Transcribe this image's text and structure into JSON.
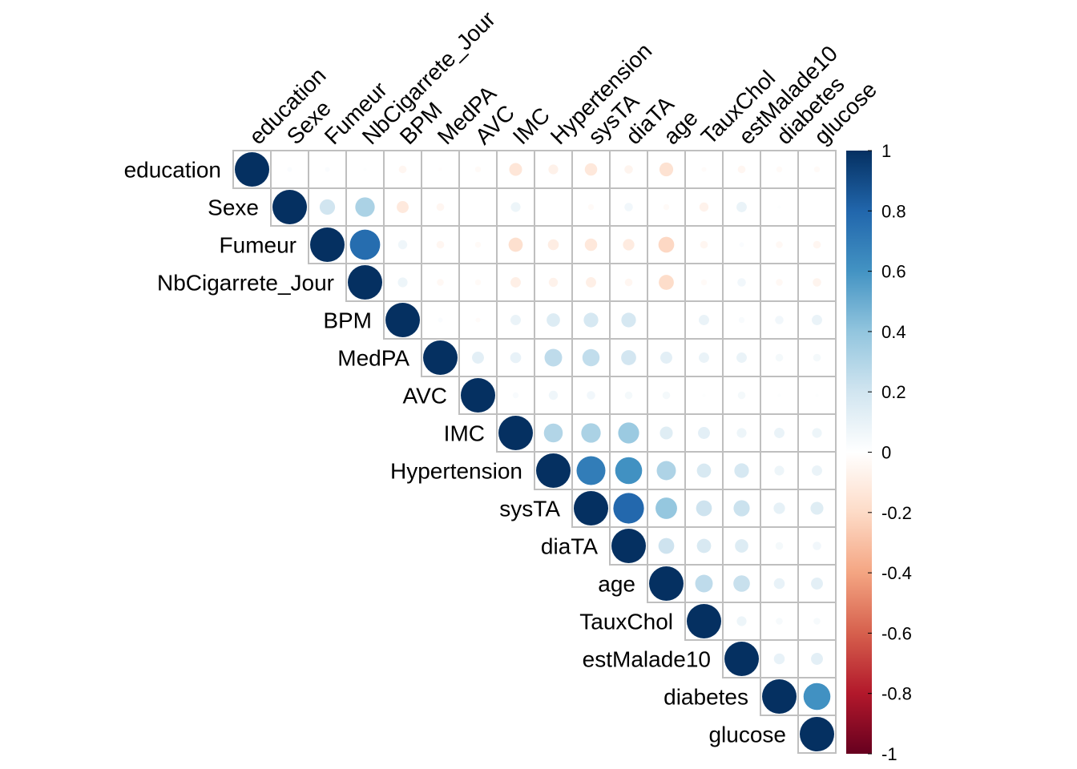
{
  "chart_data": {
    "type": "heatmap",
    "variant": "correlation-upper-circles",
    "title": "",
    "variables": [
      "education",
      "Sexe",
      "Fumeur",
      "NbCigarrete_Jour",
      "BPM",
      "MedPA",
      "AVC",
      "IMC",
      "Hypertension",
      "sysTA",
      "diaTA",
      "age",
      "TauxChol",
      "estMalade10",
      "diabetes",
      "glucose"
    ],
    "matrix": [
      [
        1,
        0.02,
        0.02,
        0.01,
        -0.05,
        -0.01,
        -0.03,
        -0.14,
        -0.08,
        -0.13,
        -0.06,
        -0.16,
        -0.02,
        -0.05,
        -0.03,
        -0.03
      ],
      [
        null,
        1,
        0.2,
        0.32,
        -0.12,
        -0.05,
        0.0,
        0.08,
        0.0,
        -0.03,
        0.06,
        -0.03,
        -0.07,
        0.09,
        0.01,
        0.0
      ],
      [
        null,
        null,
        1,
        0.77,
        0.07,
        -0.05,
        -0.03,
        -0.17,
        -0.1,
        -0.13,
        -0.11,
        -0.21,
        -0.05,
        0.02,
        -0.04,
        -0.05
      ],
      [
        null,
        null,
        null,
        1,
        0.08,
        -0.04,
        -0.03,
        -0.09,
        -0.07,
        -0.09,
        -0.05,
        -0.19,
        -0.03,
        0.06,
        -0.04,
        -0.06
      ],
      [
        null,
        null,
        null,
        null,
        1,
        0.02,
        -0.02,
        0.09,
        0.15,
        0.18,
        0.18,
        0.0,
        0.09,
        0.03,
        0.06,
        0.09
      ],
      [
        null,
        null,
        null,
        null,
        null,
        1,
        0.12,
        0.1,
        0.26,
        0.25,
        0.19,
        0.12,
        0.09,
        0.09,
        0.05,
        0.05
      ],
      [
        null,
        null,
        null,
        null,
        null,
        null,
        1,
        0.03,
        0.07,
        0.06,
        0.05,
        0.05,
        0.01,
        0.05,
        0.01,
        0.01
      ],
      [
        null,
        null,
        null,
        null,
        null,
        null,
        null,
        1,
        0.3,
        0.32,
        0.37,
        0.14,
        0.12,
        0.08,
        0.09,
        0.08
      ],
      [
        null,
        null,
        null,
        null,
        null,
        null,
        null,
        null,
        1,
        0.7,
        0.61,
        0.31,
        0.17,
        0.18,
        0.08,
        0.09
      ],
      [
        null,
        null,
        null,
        null,
        null,
        null,
        null,
        null,
        null,
        1,
        0.79,
        0.39,
        0.21,
        0.22,
        0.11,
        0.14
      ],
      [
        null,
        null,
        null,
        null,
        null,
        null,
        null,
        null,
        null,
        null,
        1,
        0.21,
        0.17,
        0.15,
        0.05,
        0.06
      ],
      [
        null,
        null,
        null,
        null,
        null,
        null,
        null,
        null,
        null,
        null,
        null,
        1,
        0.26,
        0.23,
        0.1,
        0.12
      ],
      [
        null,
        null,
        null,
        null,
        null,
        null,
        null,
        null,
        null,
        null,
        null,
        null,
        1,
        0.08,
        0.04,
        0.04
      ],
      [
        null,
        null,
        null,
        null,
        null,
        null,
        null,
        null,
        null,
        null,
        null,
        null,
        null,
        1,
        0.1,
        0.12
      ],
      [
        null,
        null,
        null,
        null,
        null,
        null,
        null,
        null,
        null,
        null,
        null,
        null,
        null,
        null,
        1,
        0.61
      ],
      [
        null,
        null,
        null,
        null,
        null,
        null,
        null,
        null,
        null,
        null,
        null,
        null,
        null,
        null,
        null,
        1
      ]
    ],
    "colorbar": {
      "range": [
        -1,
        1
      ],
      "ticks": [
        "1",
        "0.8",
        "0.6",
        "0.4",
        "0.2",
        "0",
        "-0.2",
        "-0.4",
        "-0.6",
        "-0.8",
        "-1"
      ],
      "tick_values": [
        1,
        0.8,
        0.6,
        0.4,
        0.2,
        0,
        -0.2,
        -0.4,
        -0.6,
        -0.8,
        -1
      ],
      "colors": [
        "#67001F",
        "#B2182B",
        "#D6604D",
        "#F4A582",
        "#FDDBC7",
        "#FFFFFF",
        "#D1E5F0",
        "#92C5DE",
        "#4393C3",
        "#2166AC",
        "#053061"
      ]
    },
    "grid_color": "#BFBFBF"
  }
}
